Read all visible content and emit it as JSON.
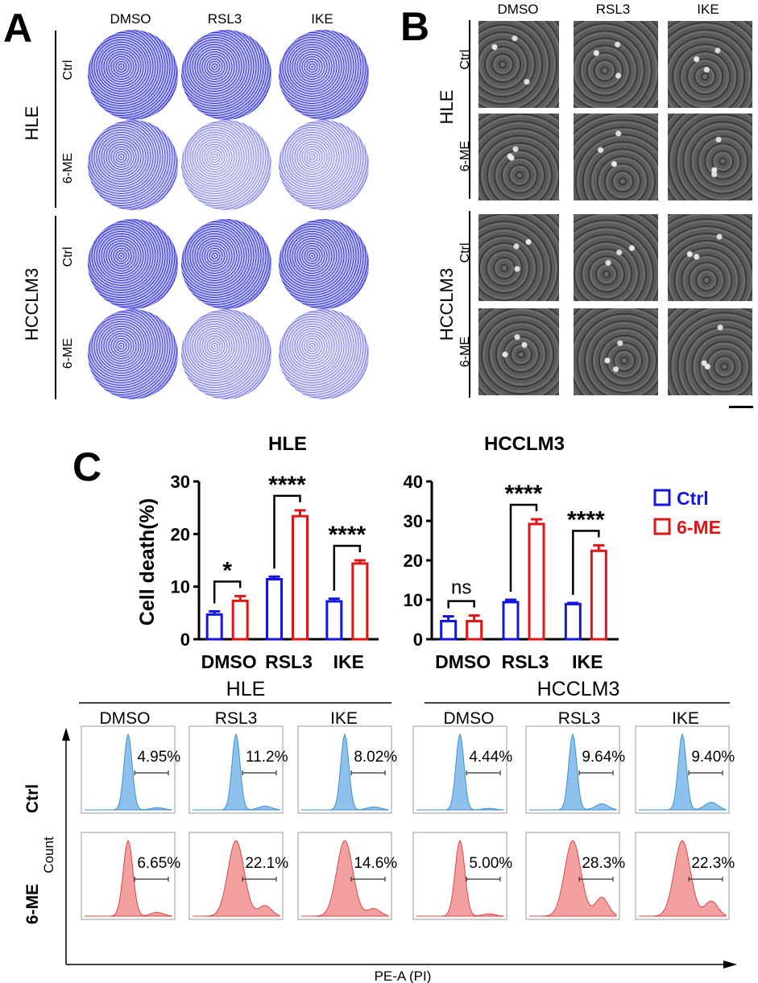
{
  "panel_letters": {
    "a": "A",
    "b": "B",
    "c": "C"
  },
  "panel_a": {
    "columns": [
      "DMSO",
      "RSL3",
      "IKE"
    ],
    "cell_lines": [
      "HLE",
      "HCCLM3"
    ],
    "rows": [
      "Ctrl",
      "6-ME",
      "Ctrl",
      "6-ME"
    ],
    "dish_density": [
      [
        0.85,
        0.8,
        0.75
      ],
      [
        0.5,
        0.12,
        0.15
      ],
      [
        0.85,
        0.8,
        0.8
      ],
      [
        0.65,
        0.18,
        0.16
      ]
    ],
    "stain_color": "#2a2ad4"
  },
  "panel_b": {
    "columns": [
      "DMSO",
      "RSL3",
      "IKE"
    ],
    "cell_lines": [
      "HLE",
      "HCCLM3"
    ],
    "rows": [
      "Ctrl",
      "6-ME",
      "Ctrl",
      "6-ME"
    ]
  },
  "chart_data": [
    {
      "type": "bar",
      "title": "HLE",
      "ylabel": "Cell death(%)",
      "categories": [
        "DMSO",
        "RSL3",
        "IKE"
      ],
      "ylim": [
        0,
        30
      ],
      "yticks": [
        0,
        10,
        20,
        30
      ],
      "series": [
        {
          "name": "Ctrl",
          "color": "#1515e0",
          "values": [
            4.7,
            11.4,
            7.2
          ],
          "errors": [
            0.6,
            0.5,
            0.5
          ]
        },
        {
          "name": "6-ME",
          "color": "#e01515",
          "values": [
            7.3,
            23.4,
            14.4
          ],
          "errors": [
            0.9,
            1.1,
            0.6
          ]
        }
      ],
      "significance": [
        "*",
        "****",
        "****"
      ]
    },
    {
      "type": "bar",
      "title": "HCCLM3",
      "ylabel": "",
      "categories": [
        "DMSO",
        "RSL3",
        "IKE"
      ],
      "ylim": [
        0,
        40
      ],
      "yticks": [
        0,
        10,
        20,
        30,
        40
      ],
      "series": [
        {
          "name": "Ctrl",
          "color": "#1515e0",
          "values": [
            4.6,
            9.4,
            8.9
          ],
          "errors": [
            1.2,
            0.6,
            0.3
          ]
        },
        {
          "name": "6-ME",
          "color": "#e01515",
          "values": [
            4.6,
            29.2,
            22.4
          ],
          "errors": [
            1.4,
            1.2,
            1.4
          ]
        }
      ],
      "significance": [
        "ns",
        "****",
        "****"
      ]
    }
  ],
  "legend": [
    {
      "label": "Ctrl",
      "color": "#1515e0"
    },
    {
      "label": "6-ME",
      "color": "#e01515"
    }
  ],
  "flow": {
    "groups": [
      "HLE",
      "HCCLM3"
    ],
    "columns": [
      "DMSO",
      "RSL3",
      "IKE"
    ],
    "rows": [
      "Ctrl",
      "6-ME"
    ],
    "ylabel": "Count",
    "xlabel": "PE-A (PI)",
    "ctrl_color": "#8ec2ec",
    "ctrl_line": "#3d8fd6",
    "me_color": "#f3a0a0",
    "me_line": "#e04545",
    "percentages": {
      "HLE": {
        "Ctrl": [
          "4.95%",
          "11.2%",
          "8.02%"
        ],
        "6-ME": [
          "6.65%",
          "22.1%",
          "14.6%"
        ]
      },
      "HCCLM3": {
        "Ctrl": [
          "4.44%",
          "9.64%",
          "9.40%"
        ],
        "6-ME": [
          "5.00%",
          "28.3%",
          "22.3%"
        ]
      }
    }
  }
}
